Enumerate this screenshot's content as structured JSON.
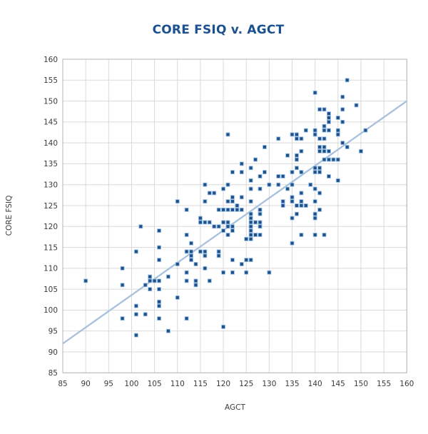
{
  "title": "CORE FSIQ v. AGCT",
  "colors": {
    "title_text": "#1b5091",
    "point_fill": "#1d518b",
    "point_stroke": "#9dc0e4",
    "trend_line": "#a7c1dd",
    "gridline": "#d9d9d9",
    "plot_border": "#b5b5b5",
    "tick_text": "#3b3b3b",
    "background": "#ffffff"
  },
  "chart_data": {
    "type": "scatter",
    "title": "CORE FSIQ v. AGCT",
    "xlabel": "AGCT",
    "ylabel": "CORE FSIQ",
    "xlim": [
      85,
      160
    ],
    "ylim": [
      85,
      160
    ],
    "xticks": [
      85,
      90,
      95,
      100,
      105,
      110,
      115,
      120,
      125,
      130,
      135,
      140,
      145,
      150,
      155,
      160
    ],
    "yticks": [
      85,
      90,
      95,
      100,
      105,
      110,
      115,
      120,
      125,
      130,
      135,
      140,
      145,
      150,
      155,
      160
    ],
    "grid": true,
    "legend": "none",
    "marker": "square",
    "trend_line": {
      "x1": 85,
      "y1": 92,
      "x2": 160,
      "y2": 150
    },
    "points": [
      [
        90,
        107
      ],
      [
        98,
        110
      ],
      [
        98,
        106
      ],
      [
        98,
        98
      ],
      [
        101,
        114
      ],
      [
        101,
        101
      ],
      [
        101,
        99
      ],
      [
        101,
        94
      ],
      [
        102,
        120
      ],
      [
        103,
        106
      ],
      [
        103,
        99
      ],
      [
        104,
        108
      ],
      [
        104,
        107
      ],
      [
        104,
        105
      ],
      [
        105,
        107
      ],
      [
        106,
        107
      ],
      [
        106,
        105
      ],
      [
        106,
        102
      ],
      [
        106,
        101
      ],
      [
        106,
        98
      ],
      [
        106,
        119
      ],
      [
        106,
        115
      ],
      [
        106,
        112
      ],
      [
        108,
        108
      ],
      [
        108,
        95
      ],
      [
        110,
        126
      ],
      [
        110,
        111
      ],
      [
        110,
        103
      ],
      [
        112,
        124
      ],
      [
        112,
        118
      ],
      [
        112,
        114
      ],
      [
        112,
        109
      ],
      [
        112,
        107
      ],
      [
        112,
        98
      ],
      [
        113,
        116
      ],
      [
        113,
        114
      ],
      [
        113,
        113
      ],
      [
        113,
        112
      ],
      [
        114,
        111
      ],
      [
        114,
        107
      ],
      [
        114,
        106
      ],
      [
        115,
        122
      ],
      [
        115,
        121
      ],
      [
        115,
        114
      ],
      [
        116,
        130
      ],
      [
        116,
        126
      ],
      [
        116,
        121
      ],
      [
        116,
        114
      ],
      [
        116,
        113
      ],
      [
        116,
        110
      ],
      [
        117,
        128
      ],
      [
        117,
        121
      ],
      [
        117,
        107
      ],
      [
        118,
        128
      ],
      [
        118,
        120
      ],
      [
        119,
        124
      ],
      [
        119,
        120
      ],
      [
        119,
        114
      ],
      [
        119,
        113
      ],
      [
        120,
        129
      ],
      [
        120,
        124
      ],
      [
        120,
        121
      ],
      [
        120,
        119
      ],
      [
        120,
        109
      ],
      [
        120,
        96
      ],
      [
        121,
        142
      ],
      [
        121,
        130
      ],
      [
        121,
        126
      ],
      [
        121,
        124
      ],
      [
        121,
        121
      ],
      [
        121,
        120
      ],
      [
        121,
        118
      ],
      [
        122,
        133
      ],
      [
        122,
        127
      ],
      [
        122,
        126
      ],
      [
        122,
        124
      ],
      [
        122,
        120
      ],
      [
        122,
        119
      ],
      [
        122,
        112
      ],
      [
        122,
        109
      ],
      [
        123,
        125
      ],
      [
        123,
        124
      ],
      [
        124,
        135
      ],
      [
        124,
        133
      ],
      [
        124,
        127
      ],
      [
        124,
        124
      ],
      [
        124,
        111
      ],
      [
        125,
        117
      ],
      [
        125,
        112
      ],
      [
        125,
        109
      ],
      [
        126,
        134
      ],
      [
        126,
        131
      ],
      [
        126,
        129
      ],
      [
        126,
        126
      ],
      [
        126,
        123
      ],
      [
        126,
        122
      ],
      [
        126,
        121
      ],
      [
        126,
        120
      ],
      [
        126,
        119
      ],
      [
        126,
        118
      ],
      [
        126,
        117
      ],
      [
        126,
        112
      ],
      [
        127,
        136
      ],
      [
        127,
        121
      ],
      [
        127,
        118
      ],
      [
        128,
        132
      ],
      [
        128,
        129
      ],
      [
        128,
        124
      ],
      [
        128,
        123
      ],
      [
        128,
        121
      ],
      [
        128,
        120
      ],
      [
        128,
        118
      ],
      [
        129,
        139
      ],
      [
        129,
        133
      ],
      [
        130,
        130
      ],
      [
        130,
        109
      ],
      [
        132,
        141
      ],
      [
        132,
        132
      ],
      [
        132,
        130
      ],
      [
        133,
        132
      ],
      [
        133,
        126
      ],
      [
        133,
        125
      ],
      [
        134,
        137
      ],
      [
        134,
        129
      ],
      [
        135,
        142
      ],
      [
        135,
        133
      ],
      [
        135,
        130
      ],
      [
        135,
        127
      ],
      [
        135,
        126
      ],
      [
        135,
        122
      ],
      [
        135,
        116
      ],
      [
        136,
        142
      ],
      [
        136,
        141
      ],
      [
        136,
        137
      ],
      [
        136,
        136
      ],
      [
        136,
        134
      ],
      [
        136,
        125
      ],
      [
        136,
        123
      ],
      [
        137,
        141
      ],
      [
        137,
        138
      ],
      [
        137,
        133
      ],
      [
        137,
        128
      ],
      [
        137,
        126
      ],
      [
        137,
        125
      ],
      [
        137,
        118
      ],
      [
        138,
        143
      ],
      [
        138,
        125
      ],
      [
        139,
        130
      ],
      [
        140,
        152
      ],
      [
        140,
        143
      ],
      [
        140,
        142
      ],
      [
        140,
        134
      ],
      [
        140,
        133
      ],
      [
        140,
        129
      ],
      [
        140,
        126
      ],
      [
        140,
        123
      ],
      [
        140,
        122
      ],
      [
        140,
        118
      ],
      [
        141,
        148
      ],
      [
        141,
        141
      ],
      [
        141,
        139
      ],
      [
        141,
        138
      ],
      [
        141,
        134
      ],
      [
        141,
        133
      ],
      [
        141,
        128
      ],
      [
        141,
        124
      ],
      [
        142,
        148
      ],
      [
        142,
        144
      ],
      [
        142,
        143
      ],
      [
        142,
        141
      ],
      [
        142,
        139
      ],
      [
        142,
        138
      ],
      [
        142,
        136
      ],
      [
        142,
        118
      ],
      [
        143,
        147
      ],
      [
        143,
        146
      ],
      [
        143,
        145
      ],
      [
        143,
        143
      ],
      [
        143,
        138
      ],
      [
        143,
        136
      ],
      [
        143,
        132
      ],
      [
        144,
        136
      ],
      [
        145,
        146
      ],
      [
        145,
        143
      ],
      [
        145,
        142
      ],
      [
        145,
        136
      ],
      [
        145,
        131
      ],
      [
        146,
        151
      ],
      [
        146,
        148
      ],
      [
        146,
        145
      ],
      [
        146,
        140
      ],
      [
        147,
        155
      ],
      [
        147,
        139
      ],
      [
        149,
        149
      ],
      [
        150,
        138
      ],
      [
        151,
        143
      ]
    ]
  }
}
